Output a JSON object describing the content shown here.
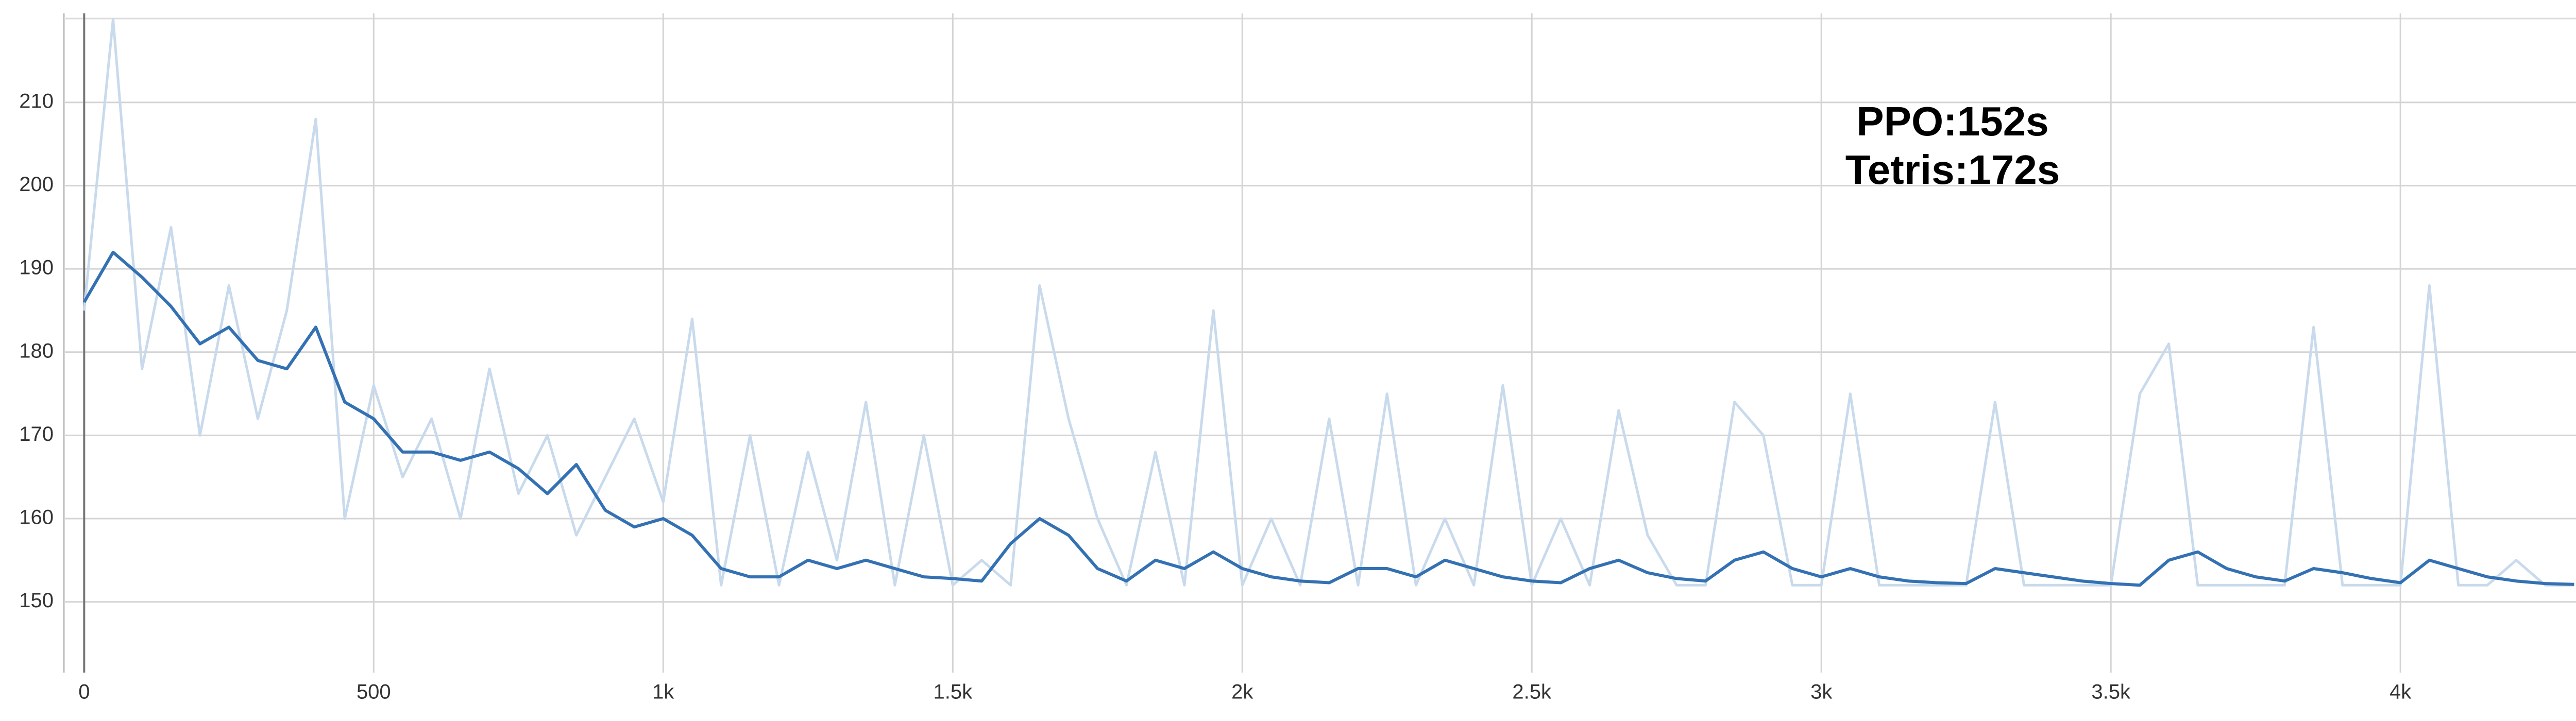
{
  "chart_data": {
    "type": "line",
    "annotations": [
      "PPO:152s",
      "Tetris:172s"
    ],
    "x": [
      0,
      50,
      100,
      150,
      200,
      250,
      300,
      350,
      400,
      450,
      500,
      550,
      600,
      650,
      700,
      750,
      800,
      850,
      900,
      950,
      1000,
      1050,
      1100,
      1150,
      1200,
      1250,
      1300,
      1350,
      1400,
      1450,
      1500,
      1550,
      1600,
      1650,
      1700,
      1750,
      1800,
      1850,
      1900,
      1950,
      2000,
      2050,
      2100,
      2150,
      2200,
      2250,
      2300,
      2350,
      2400,
      2450,
      2500,
      2550,
      2600,
      2650,
      2700,
      2750,
      2800,
      2850,
      2900,
      2950,
      3000,
      3050,
      3100,
      3150,
      3200,
      3250,
      3300,
      3350,
      3400,
      3450,
      3500,
      3550,
      3600,
      3650,
      3700,
      3750,
      3800,
      3850,
      3900,
      3950,
      4000,
      4050,
      4100,
      4150,
      4200,
      4250,
      4300
    ],
    "series": [
      {
        "color": "#c8daec",
        "values": [
          185,
          220,
          178,
          195,
          170,
          188,
          172,
          185,
          208,
          160,
          176,
          165,
          172,
          160,
          178,
          163,
          170,
          158,
          165,
          172,
          162,
          184,
          152,
          170,
          152,
          168,
          155,
          174,
          152,
          170,
          152,
          155,
          152,
          188,
          172,
          160,
          152,
          168,
          152,
          185,
          152,
          160,
          152,
          172,
          152,
          175,
          152,
          160,
          152,
          176,
          152,
          160,
          152,
          173,
          158,
          152,
          152,
          174,
          170,
          152,
          152,
          175,
          152,
          152,
          152,
          152,
          174,
          152,
          152,
          152,
          152,
          175,
          181,
          152,
          152,
          152,
          152,
          183,
          152,
          152,
          152,
          188,
          152,
          152,
          155,
          152,
          152
        ]
      },
      {
        "color": "#3371b3",
        "values": [
          186,
          192,
          189,
          185.5,
          181,
          183,
          179,
          178,
          183,
          174,
          172,
          168,
          168,
          167,
          168,
          166,
          163,
          166.5,
          161,
          159,
          160,
          158,
          154,
          153,
          153,
          155,
          154,
          155,
          154,
          153,
          152.8,
          152.5,
          157,
          160,
          158,
          154,
          152.5,
          155,
          154,
          156,
          154,
          153,
          152.5,
          152.3,
          154,
          154,
          153,
          155,
          154,
          153,
          152.5,
          152.3,
          154,
          155,
          153.5,
          152.8,
          152.5,
          155,
          156,
          154,
          153,
          154,
          153,
          152.5,
          152.3,
          152.2,
          154,
          153.5,
          153,
          152.5,
          152.2,
          152,
          155,
          156,
          154,
          153,
          152.5,
          154,
          153.5,
          152.8,
          152.3,
          155,
          154,
          153,
          152.5,
          152.2,
          152.1
        ]
      }
    ],
    "xlim": [
      -35,
      4410
    ],
    "ylim": [
      141.5,
      220.7
    ],
    "xticks": [
      0,
      500,
      {
        "value": 1000,
        "label": "1k"
      },
      {
        "value": 1500,
        "label": "1.5k"
      },
      {
        "value": 2000,
        "label": "2k"
      },
      {
        "value": 2500,
        "label": "2.5k"
      },
      {
        "value": 3000,
        "label": "3k"
      },
      {
        "value": 3500,
        "label": "3.5k"
      },
      {
        "value": 4000,
        "label": "4k"
      }
    ],
    "yticks": [
      150,
      160,
      170,
      180,
      190,
      200,
      210
    ],
    "grid": true
  }
}
